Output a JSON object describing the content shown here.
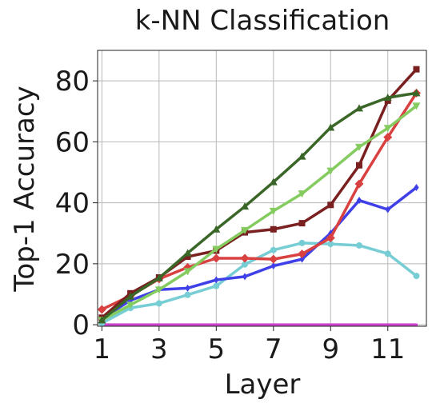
{
  "chart_data": {
    "type": "line",
    "title": "k-NN Classification",
    "xlabel": "Layer",
    "ylabel": "Top-1 Accuracy",
    "xlim": [
      0.85,
      12.35
    ],
    "ylim": [
      -0.5,
      90
    ],
    "x_ticks": [
      1,
      3,
      5,
      7,
      9,
      11
    ],
    "y_ticks": [
      0,
      20,
      40,
      60,
      80
    ],
    "grid": true,
    "legend": "none",
    "x": [
      1,
      2,
      3,
      4,
      5,
      6,
      7,
      8,
      9,
      10,
      11,
      12
    ],
    "series": [
      {
        "color": "#cc44cc",
        "marker": "none",
        "values": [
          0,
          0,
          0,
          0,
          0,
          0,
          0,
          0,
          0,
          0,
          0,
          0
        ]
      },
      {
        "color": "#76cdd4",
        "marker": "circle",
        "values": [
          0.5,
          5.5,
          7,
          9.8,
          12.7,
          19.8,
          24.5,
          26.8,
          26.5,
          26,
          23.3,
          16
        ]
      },
      {
        "color": "#4040e8",
        "marker": "diamond-small",
        "values": [
          2,
          8,
          11.5,
          12,
          14.7,
          15.8,
          19.3,
          21.5,
          30,
          40.8,
          37.8,
          45
        ]
      },
      {
        "color": "#d94040",
        "marker": "diamond",
        "values": [
          5,
          9.5,
          15,
          18.8,
          21.8,
          21.8,
          21.5,
          23.2,
          28.5,
          46.2,
          61.5,
          76
        ]
      },
      {
        "color": "#7a2020",
        "marker": "square",
        "values": [
          2.3,
          10.3,
          15.5,
          22.3,
          24.3,
          30.3,
          31.3,
          33.3,
          39.3,
          52.3,
          73.5,
          83.8
        ]
      },
      {
        "color": "#84cc60",
        "marker": "triangle-down",
        "values": [
          1.5,
          6.5,
          11.5,
          17.5,
          24.8,
          31,
          37.3,
          43,
          50.5,
          58.3,
          64.5,
          71.8
        ]
      },
      {
        "color": "#3a6628",
        "marker": "triangle-up",
        "values": [
          1.5,
          9.3,
          15.3,
          23.5,
          31.3,
          38.8,
          46.8,
          55.2,
          64.7,
          71,
          74.5,
          76
        ]
      }
    ]
  }
}
